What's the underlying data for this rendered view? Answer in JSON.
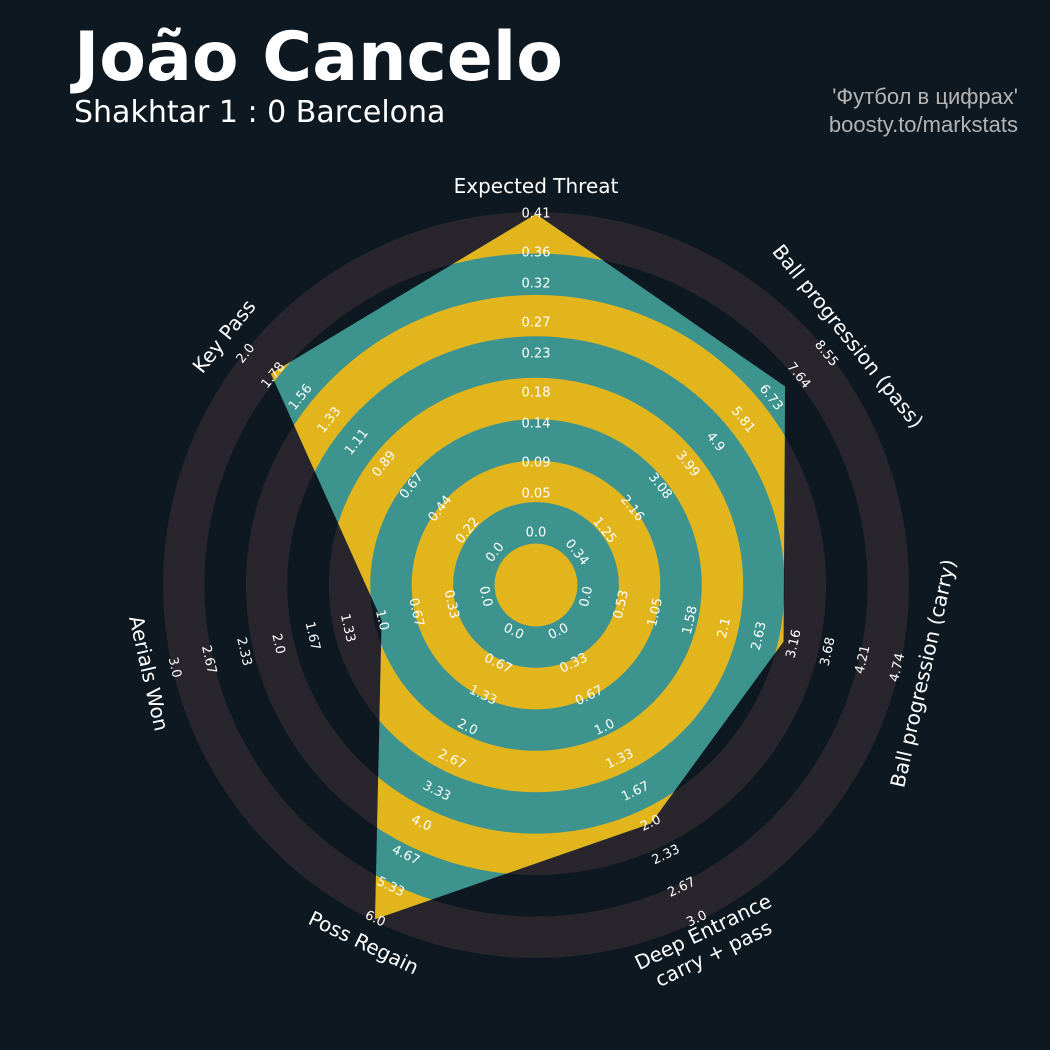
{
  "chart_data": {
    "type": "radar",
    "title": "João Cancelo",
    "subtitle": "Shakhtar 1 : 0 Barcelona",
    "credits": [
      "'Футбол в цифрах'",
      "boosty.to/markstats"
    ],
    "categories": [
      [
        "Expected Threat"
      ],
      [
        "Ball progression (pass)"
      ],
      [
        "Ball progression (carry)"
      ],
      [
        "Deep Entrance",
        "carry + pass"
      ],
      [
        "Poss Regain"
      ],
      [
        "Aerials Won"
      ],
      [
        "Key Pass"
      ]
    ],
    "values": [
      0.41,
      7.2,
      3.0,
      2,
      6,
      1,
      1.8
    ],
    "ranges": [
      [
        0,
        0.41
      ],
      [
        0.34,
        8.55
      ],
      [
        0,
        4.74
      ],
      [
        0,
        3
      ],
      [
        0,
        6
      ],
      [
        0,
        3
      ],
      [
        0,
        2
      ]
    ],
    "ticks": [
      [
        {
          "value": 0,
          "label": "0.0"
        },
        0.05,
        0.09,
        0.14,
        0.18,
        0.23,
        0.27,
        0.32,
        0.36,
        0.41
      ],
      [
        0.34,
        1.25,
        2.16,
        3.08,
        3.99,
        4.9,
        5.81,
        6.73,
        7.64,
        8.55
      ],
      [
        {
          "value": 0,
          "label": "0.0"
        },
        0.53,
        1.05,
        1.58,
        2.1,
        2.63,
        3.16,
        3.68,
        4.21,
        4.74
      ],
      [
        {
          "value": 0,
          "label": "0.0"
        },
        0.33,
        0.67,
        {
          "value": 1,
          "label": "1.0"
        },
        1.33,
        1.67,
        {
          "value": 2,
          "label": "2.0"
        },
        2.33,
        2.67,
        {
          "value": 3,
          "label": "3.0"
        }
      ],
      [
        {
          "value": 0,
          "label": "0.0"
        },
        0.67,
        1.33,
        {
          "value": 2,
          "label": "2.0"
        },
        2.67,
        3.33,
        {
          "value": 4,
          "label": "4.0"
        },
        4.67,
        5.33,
        {
          "value": 6,
          "label": "6.0"
        }
      ],
      [
        {
          "value": 0,
          "label": "0.0"
        },
        0.33,
        0.67,
        {
          "value": 1,
          "label": "1.0"
        },
        1.33,
        1.67,
        {
          "value": 2,
          "label": "2.0"
        },
        2.33,
        2.67,
        {
          "value": 3,
          "label": "3.0"
        }
      ],
      [
        {
          "value": 0,
          "label": "0.0"
        },
        0.22,
        0.44,
        0.67,
        0.89,
        1.11,
        1.33,
        1.56,
        1.78,
        {
          "value": 2,
          "label": "2.0"
        }
      ]
    ],
    "color": "#3d948e",
    "ring_color": "#e3b51c",
    "outer_ring_color": "#28252c",
    "background": "#0e1820"
  }
}
